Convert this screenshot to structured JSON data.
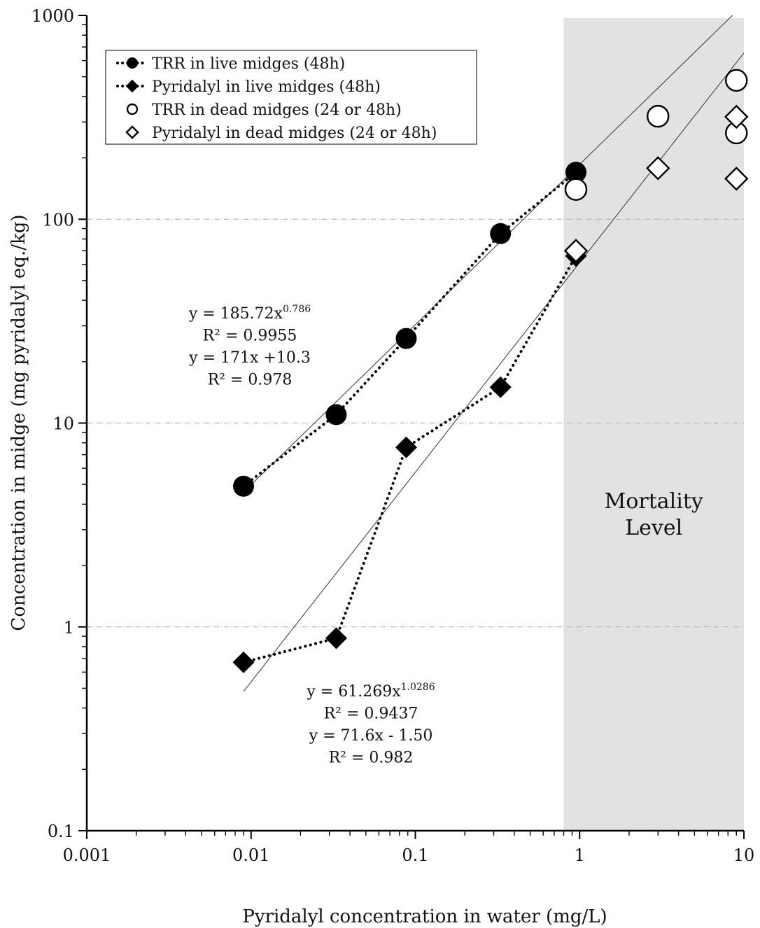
{
  "chart_data": {
    "type": "scatter",
    "xscale": "log",
    "yscale": "log",
    "xlim": [
      0.001,
      10
    ],
    "ylim": [
      0.1,
      1000
    ],
    "xlabel": "Pyridalyl concentration in water (mg/L)",
    "ylabel": "Concentration in midge (mg pyridalyl eq./kg)",
    "xticks": [
      "0.001",
      "0.01",
      "0.1",
      "1",
      "10"
    ],
    "yticks": [
      "0.1",
      "1",
      "10",
      "100",
      "1000"
    ],
    "grid": "horizontal dashed at 1, 10, 100",
    "legend_position": "top-left",
    "region": {
      "label_line1": "Mortality",
      "label_line2": "Level",
      "x_from": 0.8,
      "x_to": 10,
      "color": "#e2e2e2"
    },
    "series": [
      {
        "name": "TRR in live midges (48h)",
        "marker": "filled-circle",
        "line": "dotted",
        "x": [
          0.009,
          0.033,
          0.088,
          0.33,
          0.95
        ],
        "y": [
          4.9,
          11,
          26,
          85,
          170
        ]
      },
      {
        "name": "Pyridalyl in live midges (48h)",
        "marker": "filled-diamond",
        "line": "dotted",
        "x": [
          0.009,
          0.033,
          0.088,
          0.33,
          0.95
        ],
        "y": [
          0.67,
          0.88,
          7.6,
          15,
          66
        ]
      },
      {
        "name": "TRR in dead midges (24 or 48h)",
        "marker": "open-circle",
        "line": "none",
        "x": [
          0.95,
          3.0,
          9.0,
          9.0
        ],
        "y": [
          140,
          320,
          480,
          265
        ]
      },
      {
        "name": "Pyridalyl in dead midges (24 or 48h)",
        "marker": "open-diamond",
        "line": "none",
        "x": [
          0.95,
          3.0,
          9.0,
          9.0
        ],
        "y": [
          70,
          178,
          318,
          158
        ]
      }
    ],
    "fits": [
      {
        "coef": 185.72,
        "exp": 0.786,
        "x_from": 0.009,
        "x_to": 10
      },
      {
        "coef": 61.269,
        "exp": 1.0286,
        "x_from": 0.009,
        "x_to": 10
      }
    ],
    "annotations": [
      {
        "lines": [
          {
            "text": "y = 185.72x",
            "sup": "0.786"
          },
          {
            "text": "R² = 0.9955"
          },
          {
            "text": "y = 171x +10.3"
          },
          {
            "text": "R² = 0.978"
          }
        ]
      },
      {
        "lines": [
          {
            "text": "y = 61.269x",
            "sup": "1.0286"
          },
          {
            "text": "R² = 0.9437"
          },
          {
            "text": "y = 71.6x - 1.50"
          },
          {
            "text": "R² = 0.982"
          }
        ]
      }
    ]
  }
}
